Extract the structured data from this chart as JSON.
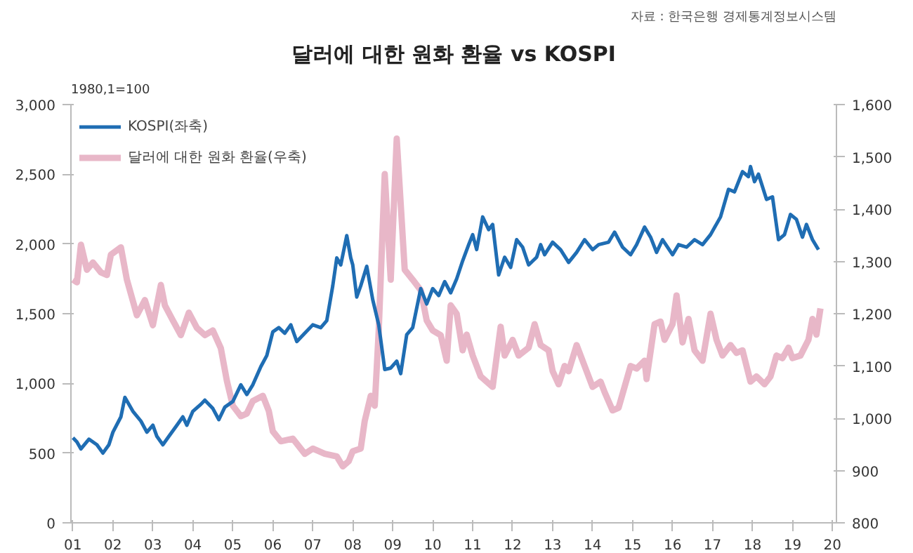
{
  "chart_data": {
    "type": "line",
    "title": "달러에 대한 원화 환율 vs KOSPI",
    "annotations": [
      "자료 : 한국은행 경제통계정보시스템",
      "1980,1=100"
    ],
    "xlim": [
      2000.95,
      2020.1
    ],
    "xticks": [
      {
        "value": 2001,
        "label": "01"
      },
      {
        "value": 2002,
        "label": "02"
      },
      {
        "value": 2003,
        "label": "03"
      },
      {
        "value": 2004,
        "label": "04"
      },
      {
        "value": 2005,
        "label": "05"
      },
      {
        "value": 2006,
        "label": "06"
      },
      {
        "value": 2007,
        "label": "07"
      },
      {
        "value": 2008,
        "label": "08"
      },
      {
        "value": 2009,
        "label": "09"
      },
      {
        "value": 2010,
        "label": "10"
      },
      {
        "value": 2011,
        "label": "11"
      },
      {
        "value": 2012,
        "label": "12"
      },
      {
        "value": 2013,
        "label": "13"
      },
      {
        "value": 2014,
        "label": "14"
      },
      {
        "value": 2015,
        "label": "15"
      },
      {
        "value": 2016,
        "label": "16"
      },
      {
        "value": 2017,
        "label": "17"
      },
      {
        "value": 2018,
        "label": "18"
      },
      {
        "value": 2019,
        "label": "19"
      },
      {
        "value": 2020,
        "label": "20"
      }
    ],
    "ylim": [
      0,
      3000
    ],
    "yticks": [
      {
        "value": 0,
        "label": "0"
      },
      {
        "value": 500,
        "label": "500"
      },
      {
        "value": 1000,
        "label": "1,000"
      },
      {
        "value": 1500,
        "label": "1,500"
      },
      {
        "value": 2000,
        "label": "2,000"
      },
      {
        "value": 2500,
        "label": "2,500"
      },
      {
        "value": 3000,
        "label": "3,000"
      }
    ],
    "y2lim": [
      800,
      1600
    ],
    "y2ticks": [
      {
        "value": 800,
        "label": "800"
      },
      {
        "value": 900,
        "label": "900"
      },
      {
        "value": 1000,
        "label": "1,000"
      },
      {
        "value": 1100,
        "label": "1,100"
      },
      {
        "value": 1200,
        "label": "1,200"
      },
      {
        "value": 1300,
        "label": "1,300"
      },
      {
        "value": 1400,
        "label": "1,400"
      },
      {
        "value": 1500,
        "label": "1,500"
      },
      {
        "value": 1600,
        "label": "1,600"
      }
    ],
    "grid": false,
    "legend": "top left",
    "marker": "none",
    "line_style": "solid",
    "series": [
      {
        "name": "KOSPI(좌축)",
        "color": "#1f6db3",
        "x": [
          2001.0,
          2001.1,
          2001.2,
          2001.4,
          2001.6,
          2001.75,
          2001.9,
          2002.0,
          2002.2,
          2002.3,
          2002.5,
          2002.7,
          2002.85,
          2003.0,
          2003.1,
          2003.25,
          2003.4,
          2003.6,
          2003.75,
          2003.85,
          2004.0,
          2004.2,
          2004.3,
          2004.5,
          2004.65,
          2004.8,
          2005.0,
          2005.2,
          2005.35,
          2005.5,
          2005.7,
          2005.85,
          2006.0,
          2006.15,
          2006.3,
          2006.45,
          2006.6,
          2006.8,
          2007.0,
          2007.2,
          2007.35,
          2007.5,
          2007.6,
          2007.7,
          2007.85,
          2007.95,
          2008.0,
          2008.1,
          2008.2,
          2008.35,
          2008.5,
          2008.65,
          2008.8,
          2008.95,
          2009.1,
          2009.2,
          2009.35,
          2009.5,
          2009.7,
          2009.85,
          2010.0,
          2010.15,
          2010.3,
          2010.45,
          2010.6,
          2010.75,
          2010.9,
          2011.0,
          2011.1,
          2011.25,
          2011.4,
          2011.5,
          2011.65,
          2011.8,
          2011.95,
          2012.1,
          2012.25,
          2012.4,
          2012.6,
          2012.7,
          2012.8,
          2013.0,
          2013.2,
          2013.4,
          2013.6,
          2013.8,
          2014.0,
          2014.15,
          2014.4,
          2014.55,
          2014.75,
          2014.95,
          2015.1,
          2015.3,
          2015.45,
          2015.6,
          2015.75,
          2016.0,
          2016.15,
          2016.35,
          2016.55,
          2016.75,
          2016.95,
          2017.2,
          2017.4,
          2017.55,
          2017.75,
          2017.9,
          2017.95,
          2018.05,
          2018.15,
          2018.35,
          2018.5,
          2018.65,
          2018.8,
          2018.95,
          2019.1,
          2019.25,
          2019.35,
          2019.5,
          2019.65
        ],
        "values": [
          610,
          580,
          530,
          600,
          560,
          500,
          560,
          650,
          760,
          900,
          800,
          730,
          650,
          700,
          620,
          560,
          620,
          700,
          760,
          700,
          800,
          850,
          880,
          820,
          740,
          830,
          870,
          990,
          920,
          990,
          1120,
          1200,
          1370,
          1400,
          1360,
          1420,
          1300,
          1360,
          1420,
          1400,
          1450,
          1700,
          1900,
          1850,
          2060,
          1900,
          1850,
          1620,
          1700,
          1840,
          1600,
          1420,
          1100,
          1110,
          1160,
          1070,
          1350,
          1400,
          1680,
          1570,
          1680,
          1630,
          1730,
          1650,
          1750,
          1880,
          1995,
          2067,
          1960,
          2194,
          2103,
          2140,
          1778,
          1905,
          1832,
          2031,
          1977,
          1850,
          1905,
          1995,
          1923,
          2013,
          1959,
          1868,
          1940,
          2031,
          1959,
          1995,
          2013,
          2085,
          1977,
          1923,
          1995,
          2121,
          2049,
          1940,
          2031,
          1923,
          1995,
          1977,
          2031,
          1995,
          2067,
          2194,
          2392,
          2374,
          2519,
          2483,
          2555,
          2447,
          2501,
          2320,
          2338,
          2031,
          2067,
          2212,
          2176,
          2049,
          2140,
          2031,
          1959
        ]
      },
      {
        "name": "달러에 대한 원화 환율(우축)",
        "color": "#e8b7c8",
        "axis": "y2",
        "x": [
          2001.0,
          2001.1,
          2001.2,
          2001.35,
          2001.5,
          2001.7,
          2001.85,
          2001.95,
          2002.2,
          2002.35,
          2002.6,
          2002.8,
          2003.0,
          2003.2,
          2003.3,
          2003.5,
          2003.7,
          2003.9,
          2004.1,
          2004.3,
          2004.5,
          2004.7,
          2004.85,
          2005.0,
          2005.2,
          2005.35,
          2005.5,
          2005.75,
          2005.9,
          2006.0,
          2006.2,
          2006.5,
          2006.8,
          2007.0,
          2007.3,
          2007.6,
          2007.75,
          2007.9,
          2008.0,
          2008.2,
          2008.3,
          2008.45,
          2008.55,
          2008.65,
          2008.8,
          2008.95,
          2009.1,
          2009.3,
          2009.5,
          2009.7,
          2009.85,
          2010.0,
          2010.2,
          2010.35,
          2010.45,
          2010.6,
          2010.75,
          2010.85,
          2011.0,
          2011.2,
          2011.5,
          2011.7,
          2011.8,
          2012.0,
          2012.15,
          2012.4,
          2012.55,
          2012.7,
          2012.9,
          2013.0,
          2013.15,
          2013.3,
          2013.4,
          2013.6,
          2013.8,
          2014.0,
          2014.2,
          2014.3,
          2014.5,
          2014.65,
          2014.8,
          2014.95,
          2015.1,
          2015.3,
          2015.35,
          2015.55,
          2015.7,
          2015.8,
          2016.0,
          2016.1,
          2016.25,
          2016.4,
          2016.55,
          2016.75,
          2016.95,
          2017.1,
          2017.25,
          2017.45,
          2017.6,
          2017.75,
          2017.95,
          2018.1,
          2018.3,
          2018.45,
          2018.6,
          2018.75,
          2018.9,
          2019.0,
          2019.2,
          2019.4,
          2019.5,
          2019.6,
          2019.7
        ],
        "values": [
          1265,
          1260,
          1332,
          1284,
          1298,
          1279,
          1274,
          1313,
          1327,
          1265,
          1197,
          1226,
          1178,
          1255,
          1216,
          1187,
          1159,
          1202,
          1173,
          1159,
          1168,
          1134,
          1072,
          1024,
          1004,
          1009,
          1033,
          1043,
          1014,
          975,
          956,
          961,
          932,
          942,
          932,
          927,
          908,
          918,
          937,
          942,
          995,
          1043,
          1024,
          1168,
          1467,
          1265,
          1535,
          1284,
          1265,
          1245,
          1187,
          1168,
          1159,
          1110,
          1216,
          1200,
          1130,
          1160,
          1120,
          1080,
          1060,
          1175,
          1120,
          1150,
          1120,
          1135,
          1180,
          1140,
          1130,
          1090,
          1065,
          1100,
          1090,
          1140,
          1100,
          1060,
          1070,
          1050,
          1015,
          1020,
          1060,
          1100,
          1095,
          1110,
          1075,
          1180,
          1185,
          1150,
          1180,
          1235,
          1145,
          1190,
          1130,
          1110,
          1200,
          1150,
          1120,
          1140,
          1125,
          1130,
          1070,
          1080,
          1065,
          1080,
          1120,
          1115,
          1135,
          1115,
          1120,
          1150,
          1190,
          1160,
          1210
        ]
      }
    ]
  }
}
